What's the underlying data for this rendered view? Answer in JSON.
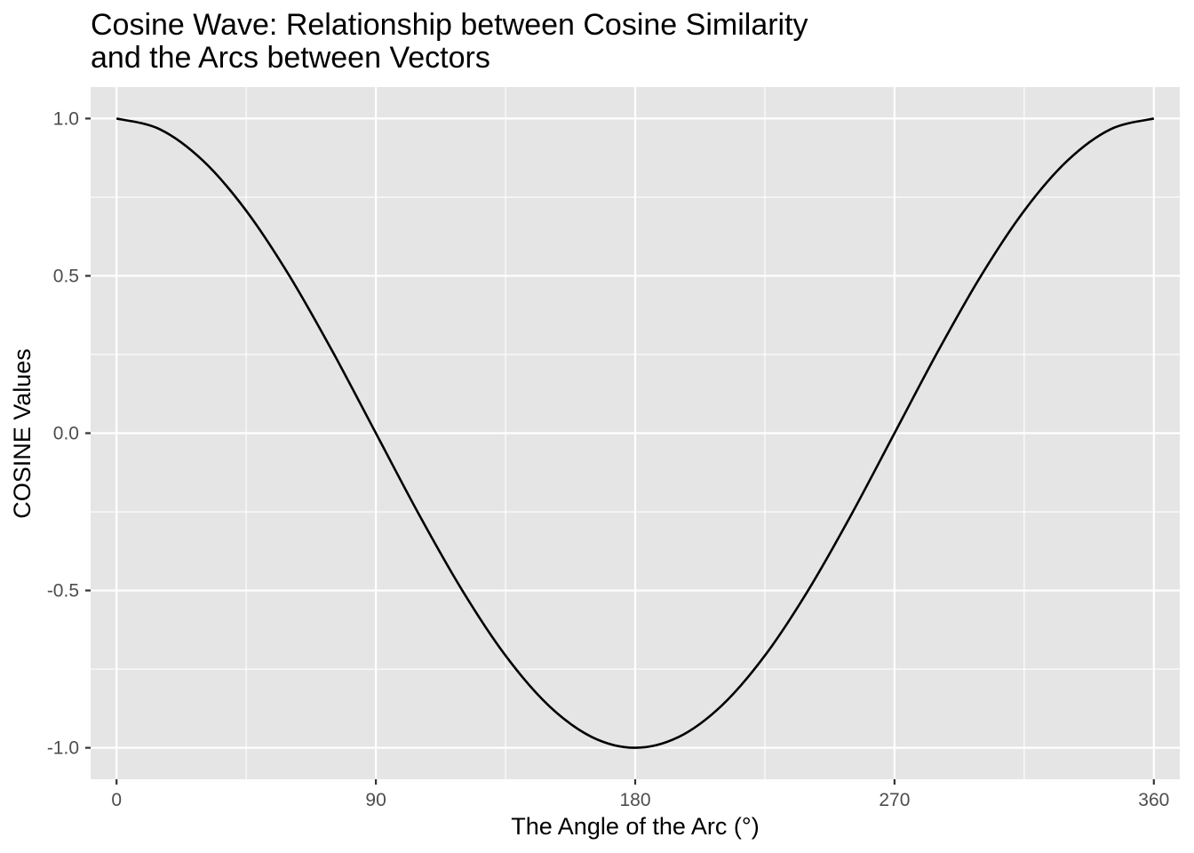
{
  "chart_data": {
    "type": "line",
    "title_lines": [
      "Cosine Wave: Relationship between Cosine Similarity",
      "and the Arcs between Vectors"
    ],
    "xlabel": "The Angle of the Arc (°)",
    "ylabel": "COSINE Values",
    "xlim": [
      -9,
      369
    ],
    "ylim": [
      -1.1,
      1.1
    ],
    "x_ticks": [
      0,
      90,
      180,
      270,
      360
    ],
    "x_tick_labels": [
      "0",
      "90",
      "180",
      "270",
      "360"
    ],
    "x_minor_ticks": [
      45,
      135,
      225,
      315
    ],
    "y_ticks": [
      -1.0,
      -0.5,
      0.0,
      0.5,
      1.0
    ],
    "y_tick_labels": [
      "-1.0",
      "-0.5",
      "0.0",
      "0.5",
      "1.0"
    ],
    "y_minor_ticks": [
      -0.75,
      -0.25,
      0.25,
      0.75
    ],
    "grid": true,
    "background_color": "#e5e5e5",
    "line_color": "#000000",
    "series": [
      {
        "x": [
          0,
          15,
          30,
          45,
          60,
          75,
          90,
          105,
          120,
          135,
          150,
          165,
          180,
          195,
          210,
          225,
          240,
          255,
          270,
          285,
          300,
          315,
          330,
          345,
          360
        ],
        "y": [
          1.0,
          0.966,
          0.866,
          0.707,
          0.5,
          0.259,
          0.0,
          -0.259,
          -0.5,
          -0.707,
          -0.866,
          -0.966,
          -1.0,
          -0.966,
          -0.866,
          -0.707,
          -0.5,
          -0.259,
          0.0,
          0.259,
          0.5,
          0.707,
          0.866,
          0.966,
          1.0
        ]
      }
    ]
  }
}
